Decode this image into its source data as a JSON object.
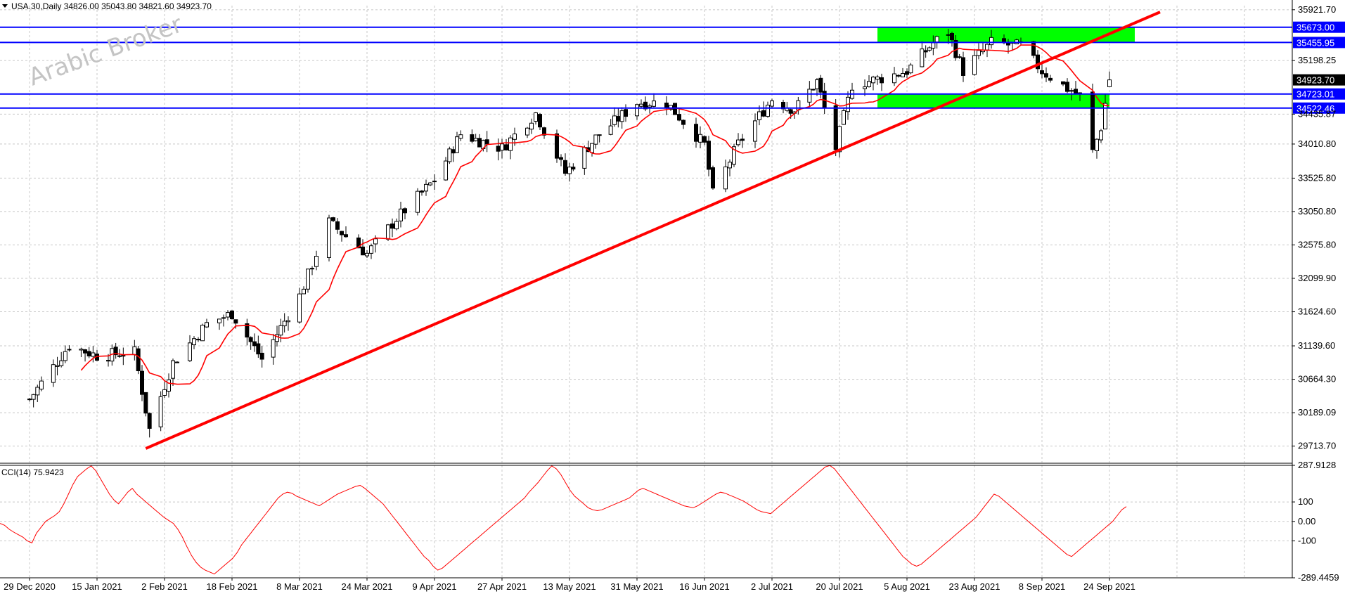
{
  "header": {
    "symbol_line": "USA.30,Daily  34826.00 35043.80 34821.60 34923.70"
  },
  "watermark": "Arabic Broker",
  "indicator_label": "CCI(14) 75.9423",
  "current_price_label": "34923.70",
  "chart_data": [
    {
      "type": "candlestick",
      "title": "",
      "symbol": "USA.30",
      "timeframe": "Daily",
      "ohlc_last": {
        "open": 34826.0,
        "high": 35043.8,
        "low": 34821.6,
        "close": 34923.7
      },
      "ylim": [
        29480,
        35980
      ],
      "y_ticks": [
        "35921.70",
        "35198.25",
        "34435.87",
        "34010.80",
        "33525.80",
        "33050.80",
        "32575.80",
        "32099.90",
        "31624.60",
        "31139.60",
        "30664.30",
        "30189.09",
        "29713.70"
      ],
      "x_tick_labels": [
        "29 Dec 2020",
        "15 Jan 2021",
        "2 Feb 2021",
        "18 Feb 2021",
        "8 Mar 2021",
        "24 Mar 2021",
        "9 Apr 2021",
        "27 Apr 2021",
        "13 May 2021",
        "31 May 2021",
        "16 Jun 2021",
        "2 Jul 2021",
        "20 Jul 2021",
        "5 Aug 2021",
        "23 Aug 2021",
        "8 Sep 2021",
        "24 Sep 2021"
      ],
      "grid": true,
      "candle_colors": {
        "bull_body": "#ffffff",
        "bear_body": "#000000",
        "outline": "#000000"
      },
      "moving_average": {
        "color": "#ff0000"
      },
      "levels": [
        {
          "value": "35673.00",
          "color": "#0000ff"
        },
        {
          "value": "35455.95",
          "color": "#0000ff"
        },
        {
          "value": "34723.01",
          "color": "#0000ff"
        },
        {
          "value": "34522.46",
          "color": "#0000ff"
        }
      ],
      "zones": [
        {
          "from": "35455.95",
          "to": "35673.00",
          "start": "29 Jul 2021",
          "end": "30 Sep 2021",
          "color": "#00ff00"
        },
        {
          "from": "34522.46",
          "to": "34723.01",
          "start": "29 Jul 2021",
          "end": "24 Sep 2021",
          "color": "#00ff00"
        }
      ],
      "trendline": {
        "color": "#ff0000",
        "from": {
          "x": "28 Jan 2021",
          "y": 29680
        },
        "through": {
          "x": "16 Jun 2021",
          "y": 33100
        }
      },
      "series": [
        {
          "date": "24 Jun 2021",
          "close": 34010
        },
        {
          "date": "24 Sep 2021",
          "close": 34923.7
        }
      ],
      "low_point": {
        "date": "29 Jan 2021",
        "value": 29680
      }
    },
    {
      "type": "line",
      "title": "CCI(14) 75.9423",
      "ylim": [
        -289.4459,
        287.9128
      ],
      "y_ticks": [
        "287.9128",
        "100",
        "0.00",
        "-100",
        "-289.4459"
      ],
      "color": "#ff0000",
      "values": [
        -10,
        -20,
        -40,
        -55,
        -68,
        -80,
        -100,
        -110,
        -60,
        -30,
        0,
        15,
        30,
        50,
        90,
        140,
        190,
        230,
        250,
        270,
        285,
        260,
        220,
        180,
        140,
        110,
        90,
        120,
        150,
        170,
        140,
        120,
        100,
        80,
        60,
        40,
        20,
        5,
        -10,
        -40,
        -80,
        -130,
        -175,
        -210,
        -235,
        -250,
        -260,
        -270,
        -250,
        -230,
        -210,
        -190,
        -160,
        -120,
        -90,
        -60,
        -30,
        0,
        30,
        60,
        90,
        120,
        140,
        150,
        145,
        130,
        120,
        110,
        100,
        90,
        80,
        95,
        110,
        125,
        140,
        150,
        160,
        170,
        180,
        185,
        170,
        150,
        130,
        110,
        90,
        60,
        30,
        0,
        -30,
        -60,
        -90,
        -120,
        -150,
        -180,
        -200,
        -230,
        -250,
        -240,
        -220,
        -200,
        -180,
        -160,
        -140,
        -120,
        -100,
        -80,
        -60,
        -40,
        -20,
        0,
        20,
        40,
        60,
        80,
        100,
        120,
        150,
        175,
        200,
        230,
        260,
        285,
        270,
        240,
        200,
        160,
        130,
        110,
        90,
        70,
        60,
        55,
        60,
        70,
        80,
        90,
        100,
        110,
        120,
        140,
        160,
        170,
        160,
        150,
        140,
        130,
        120,
        110,
        100,
        90,
        80,
        75,
        70,
        80,
        95,
        110,
        125,
        140,
        150,
        145,
        135,
        125,
        115,
        105,
        90,
        75,
        60,
        50,
        45,
        40,
        60,
        80,
        100,
        120,
        140,
        160,
        180,
        200,
        220,
        240,
        260,
        280,
        287,
        270,
        240,
        210,
        180,
        150,
        120,
        90,
        60,
        30,
        0,
        -30,
        -60,
        -90,
        -120,
        -150,
        -180,
        -200,
        -220,
        -230,
        -220,
        -200,
        -180,
        -160,
        -140,
        -120,
        -100,
        -80,
        -60,
        -40,
        -20,
        0,
        20,
        50,
        80,
        110,
        140,
        130,
        110,
        90,
        70,
        50,
        30,
        10,
        -10,
        -30,
        -50,
        -70,
        -90,
        -110,
        -130,
        -150,
        -170,
        -180,
        -160,
        -140,
        -120,
        -100,
        -80,
        -60,
        -40,
        -20,
        0,
        30,
        60,
        75.9423
      ]
    }
  ]
}
